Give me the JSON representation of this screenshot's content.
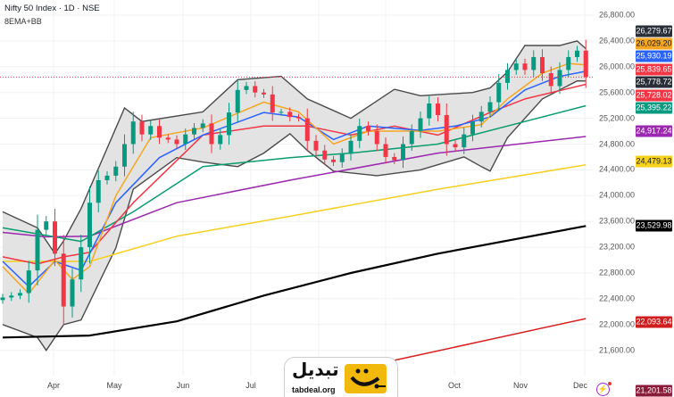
{
  "header": {
    "title": "Nifty 50 Index · 1D · NSE",
    "indicator": "8EMA+BB"
  },
  "colors": {
    "up": "#089981",
    "down": "#f23645",
    "bb_fill": "#e3e3e3",
    "bb_border": "#4a4a4a",
    "last_price_line": "#f23645"
  },
  "logo": {
    "arabic": "تبدیل",
    "domain": "tabdeal.org",
    "color": "#f2b90d"
  },
  "icons": {
    "alert": "lightning-icon"
  },
  "chart_data": {
    "type": "candlestick",
    "title": "Nifty 50 Index · 1D · NSE",
    "ylim": [
      20900,
      26900
    ],
    "y_ticks": [
      "26,800.00",
      "26,400.00",
      "26,000.00",
      "25,600.00",
      "25,200.00",
      "24,800.00",
      "24,400.00",
      "24,000.00",
      "23,600.00",
      "23,200.00",
      "22,800.00",
      "22,400.00",
      "22,000.00",
      "21,600.00"
    ],
    "y_tick_values": [
      26800,
      26400,
      26000,
      25600,
      25200,
      24800,
      24400,
      24000,
      23600,
      23200,
      22800,
      22400,
      22000,
      21600
    ],
    "x_ticks": [
      "Apr",
      "May",
      "Jun",
      "Jul",
      "Oct",
      "Nov",
      "Dec"
    ],
    "grid": true,
    "first_open": 22380,
    "closes": [
      22420,
      22450,
      22490,
      22840,
      23470,
      23600,
      23100,
      22280,
      22700,
      23200,
      23890,
      24240,
      24310,
      24450,
      24800,
      25150,
      24950,
      25080,
      24900,
      24870,
      24800,
      24950,
      25050,
      25120,
      24800,
      24940,
      25290,
      25640,
      25700,
      25600,
      25570,
      25290,
      25300,
      25220,
      25200,
      24850,
      24700,
      24560,
      24520,
      24650,
      24850,
      25080,
      25000,
      24800,
      24600,
      24550,
      24800,
      25000,
      25200,
      25430,
      25250,
      24800,
      24750,
      24950,
      25150,
      25300,
      25450,
      25750,
      25950,
      26050,
      25950,
      26150,
      25900,
      25700,
      25950,
      26150,
      26250,
      25840
    ],
    "last_price": 25839.65,
    "bollinger": {
      "upper": [
        [
          0,
          23750
        ],
        [
          4,
          23500
        ],
        [
          6,
          23100
        ],
        [
          7,
          23300
        ],
        [
          9,
          23800
        ],
        [
          14,
          25360
        ],
        [
          16,
          25150
        ],
        [
          23,
          25300
        ],
        [
          27,
          25800
        ],
        [
          32,
          25850
        ],
        [
          35,
          25500
        ],
        [
          40,
          25200
        ],
        [
          45,
          25650
        ],
        [
          48,
          25550
        ],
        [
          54,
          25600
        ],
        [
          56,
          25670
        ],
        [
          58,
          25920
        ],
        [
          60,
          26330
        ],
        [
          64,
          26330
        ],
        [
          66,
          26400
        ],
        [
          67,
          26280
        ]
      ],
      "lower": [
        [
          0,
          22000
        ],
        [
          4,
          21800
        ],
        [
          5,
          21600
        ],
        [
          7,
          22000
        ],
        [
          9,
          22070
        ],
        [
          13,
          23190
        ],
        [
          15,
          24100
        ],
        [
          20,
          24590
        ],
        [
          23,
          24520
        ],
        [
          27,
          24450
        ],
        [
          30,
          24660
        ],
        [
          33,
          24960
        ],
        [
          35,
          24700
        ],
        [
          38,
          24380
        ],
        [
          43,
          24310
        ],
        [
          48,
          24400
        ],
        [
          53,
          24600
        ],
        [
          55,
          24450
        ],
        [
          56,
          24380
        ],
        [
          58,
          24900
        ],
        [
          62,
          25500
        ],
        [
          66,
          25780
        ],
        [
          67,
          25779
        ]
      ]
    },
    "series": [
      {
        "color": "#000000",
        "last": "23,529.98",
        "points": [
          [
            0,
            21800
          ],
          [
            10,
            21830
          ],
          [
            20,
            22050
          ],
          [
            30,
            22450
          ],
          [
            40,
            22800
          ],
          [
            50,
            23100
          ],
          [
            67,
            23530
          ]
        ]
      },
      {
        "color": "#d81e1e",
        "last": "22,093.64",
        "points": [
          [
            44,
            21416
          ],
          [
            67,
            22093
          ]
        ]
      },
      {
        "color": "#f5d020",
        "last": "24,479.13",
        "points": [
          [
            0,
            22980
          ],
          [
            10,
            22980
          ],
          [
            20,
            23370
          ],
          [
            33,
            23680
          ],
          [
            50,
            24100
          ],
          [
            67,
            24479
          ]
        ]
      },
      {
        "color": "#9c27b0",
        "last": "24,917.24",
        "points": [
          [
            0,
            23430
          ],
          [
            5,
            23360
          ],
          [
            10,
            23370
          ],
          [
            20,
            23890
          ],
          [
            33,
            24240
          ],
          [
            50,
            24660
          ],
          [
            67,
            24917
          ]
        ]
      },
      {
        "color": "#089c6e",
        "last": "25,395.22",
        "points": [
          [
            0,
            23500
          ],
          [
            9,
            23290
          ],
          [
            15,
            23750
          ],
          [
            23,
            24450
          ],
          [
            33,
            24590
          ],
          [
            40,
            24660
          ],
          [
            50,
            24800
          ],
          [
            60,
            25150
          ],
          [
            67,
            25395
          ]
        ]
      },
      {
        "color": "#f23645",
        "last": "25,728.02",
        "points": [
          [
            0,
            23050
          ],
          [
            4,
            22940
          ],
          [
            7,
            23050
          ],
          [
            10,
            23120
          ],
          [
            15,
            23890
          ],
          [
            23,
            24940
          ],
          [
            30,
            25080
          ],
          [
            35,
            25080
          ],
          [
            40,
            24940
          ],
          [
            45,
            25080
          ],
          [
            50,
            24940
          ],
          [
            56,
            25290
          ],
          [
            60,
            25500
          ],
          [
            67,
            25728
          ]
        ]
      },
      {
        "color": "#2962ff",
        "last": "25,930.19",
        "points": [
          [
            0,
            22980
          ],
          [
            3,
            22590
          ],
          [
            6,
            22980
          ],
          [
            9,
            22840
          ],
          [
            13,
            23890
          ],
          [
            18,
            24590
          ],
          [
            23,
            24940
          ],
          [
            30,
            25290
          ],
          [
            34,
            25220
          ],
          [
            38,
            24870
          ],
          [
            42,
            25080
          ],
          [
            48,
            25010
          ],
          [
            52,
            25080
          ],
          [
            56,
            25220
          ],
          [
            60,
            25640
          ],
          [
            64,
            25850
          ],
          [
            67,
            25930
          ]
        ]
      },
      {
        "color": "#f5a623",
        "last": "26,029.20",
        "points": [
          [
            0,
            22900
          ],
          [
            3,
            22480
          ],
          [
            6,
            23000
          ],
          [
            8,
            22700
          ],
          [
            10,
            22900
          ],
          [
            13,
            24000
          ],
          [
            17,
            24900
          ],
          [
            23,
            25050
          ],
          [
            30,
            25450
          ],
          [
            34,
            25300
          ],
          [
            38,
            24800
          ],
          [
            42,
            25000
          ],
          [
            47,
            25000
          ],
          [
            50,
            25000
          ],
          [
            55,
            25100
          ],
          [
            58,
            25500
          ],
          [
            62,
            25900
          ],
          [
            65,
            26050
          ],
          [
            67,
            26029
          ]
        ]
      }
    ],
    "price_labels": [
      {
        "text": "26,279.67",
        "bg": "#2a2e39",
        "fg": "#ffffff"
      },
      {
        "text": "26,029.20",
        "bg": "#f5a623",
        "fg": "#131722"
      },
      {
        "text": "25,930.19",
        "bg": "#2962ff",
        "fg": "#ffffff"
      },
      {
        "text": "25,839.65",
        "bg": "#f23645",
        "fg": "#ffffff"
      },
      {
        "text": "25,778.72",
        "bg": "#2a2e39",
        "fg": "#ffffff"
      },
      {
        "text": "25,728.02",
        "bg": "#f23645",
        "fg": "#ffffff"
      },
      {
        "text": "25,395.22",
        "bg": "#089981",
        "fg": "#ffffff"
      },
      {
        "text": "24,917.24",
        "bg": "#9c27b0",
        "fg": "#ffffff"
      },
      {
        "text": "24,479.13",
        "bg": "#f7d21b",
        "fg": "#131722"
      },
      {
        "text": "23,529.98",
        "bg": "#000000",
        "fg": "#ffffff"
      },
      {
        "text": "22,093.64",
        "bg": "#d01e1e",
        "fg": "#ffffff"
      },
      {
        "text": "21,201.58",
        "bg": "#8a1c3a",
        "fg": "#ffffff"
      }
    ]
  }
}
